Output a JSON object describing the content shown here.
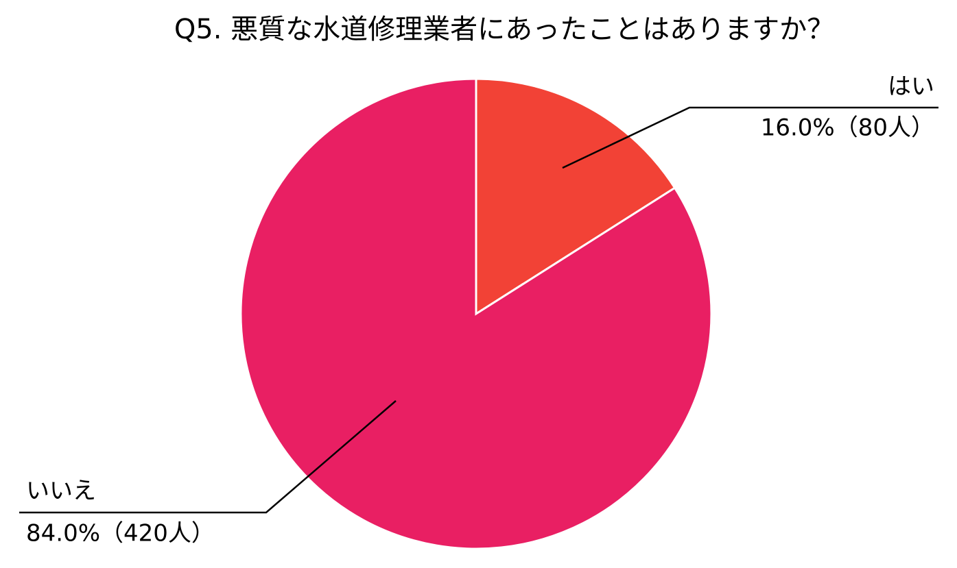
{
  "chart_data": {
    "type": "pie",
    "title": "Q5. 悪質な水道修理業者にあったことはありますか？",
    "categories": [
      "はい",
      "いいえ"
    ],
    "values": [
      16.0,
      84.0
    ],
    "value_labels": [
      "16.0%（80人）",
      "84.0%（420人）"
    ],
    "colors": [
      "#f24236",
      "#e91f63"
    ]
  }
}
